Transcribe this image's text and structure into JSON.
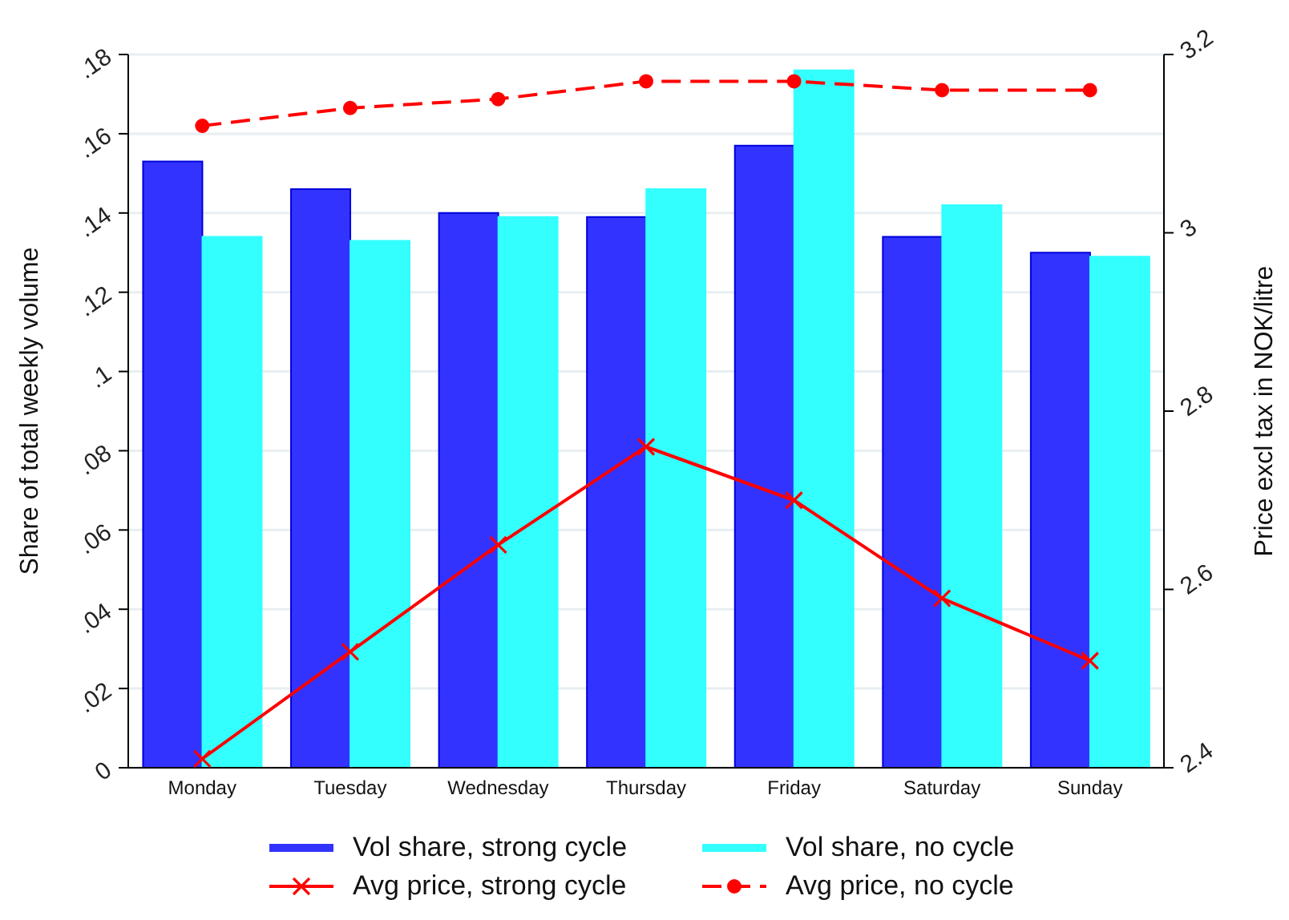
{
  "chart_data": {
    "type": "bar",
    "ylabel": "Share of total weekly volume",
    "y2label": "Price excl tax in NOK/litre",
    "categories": [
      "Monday",
      "Tuesday",
      "Wednesday",
      "Thursday",
      "Friday",
      "Saturday",
      "Sunday"
    ],
    "series": [
      {
        "name": "Vol share, strong cycle",
        "color": "#3333ff",
        "values": [
          0.153,
          0.146,
          0.14,
          0.139,
          0.157,
          0.134,
          0.13
        ]
      },
      {
        "name": "Vol share, no cycle",
        "color": "#33ffff",
        "values": [
          0.134,
          0.133,
          0.139,
          0.146,
          0.176,
          0.142,
          0.129
        ]
      },
      {
        "name": "Avg price, strong cycle",
        "type": "line",
        "axis": "y2",
        "color": "#ff0000",
        "marker": "cross",
        "line_style": "solid",
        "values": [
          2.41,
          2.53,
          2.65,
          2.76,
          2.7,
          2.59,
          2.52
        ]
      },
      {
        "name": "Avg price, no cycle",
        "type": "line",
        "axis": "y2",
        "color": "#ff0000",
        "marker": "circle",
        "line_style": "dashed",
        "values": [
          3.12,
          3.14,
          3.15,
          3.17,
          3.17,
          3.16,
          3.16
        ]
      }
    ],
    "ylim": [
      0,
      0.18
    ],
    "yticks": [
      {
        "value": 0,
        "label": "0"
      },
      {
        "value": 0.02,
        "label": ".02"
      },
      {
        "value": 0.04,
        "label": ".04"
      },
      {
        "value": 0.06,
        "label": ".06"
      },
      {
        "value": 0.08,
        "label": ".08"
      },
      {
        "value": 0.1,
        "label": ".1"
      },
      {
        "value": 0.12,
        "label": ".12"
      },
      {
        "value": 0.14,
        "label": ".14"
      },
      {
        "value": 0.16,
        "label": ".16"
      },
      {
        "value": 0.18,
        "label": ".18"
      }
    ],
    "y2lim": [
      2.4,
      3.2
    ],
    "y2ticks": [
      2.4,
      2.6,
      2.8,
      3,
      3.2
    ],
    "grid": "y",
    "legend": "bottom"
  }
}
